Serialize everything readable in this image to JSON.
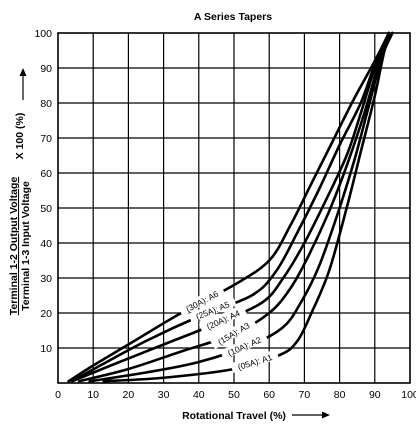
{
  "chart_data": {
    "type": "line",
    "title": "A Series Tapers",
    "xlabel": "Rotational Travel (%)",
    "ylabel_line1": "Terminal 1-2 Output Voltage",
    "ylabel_line2": "Terminal 1-3 Input Voltage",
    "ylabel_suffix": "X 100 (%)",
    "xlim": [
      0,
      100
    ],
    "ylim": [
      0,
      100
    ],
    "x_ticks": [
      "0",
      "10",
      "20",
      "30",
      "40",
      "50",
      "60",
      "70",
      "80",
      "90",
      "100"
    ],
    "y_ticks": [
      "10",
      "20",
      "30",
      "40",
      "50",
      "60",
      "70",
      "80",
      "90",
      "100"
    ],
    "grid": true,
    "series": [
      {
        "name": "(05A): A1",
        "points": [
          [
            13,
            0.5
          ],
          [
            30,
            1.5
          ],
          [
            50,
            4
          ],
          [
            63,
            8
          ],
          [
            68,
            12
          ],
          [
            72,
            20
          ],
          [
            77,
            32
          ],
          [
            82,
            50
          ],
          [
            86,
            66
          ],
          [
            90,
            82
          ],
          [
            93,
            96
          ],
          [
            95,
            100
          ]
        ]
      },
      {
        "name": "(10A): A2",
        "points": [
          [
            9,
            0.5
          ],
          [
            25,
            3
          ],
          [
            40,
            6
          ],
          [
            55,
            11
          ],
          [
            64,
            16
          ],
          [
            69,
            23
          ],
          [
            74,
            33
          ],
          [
            79,
            47
          ],
          [
            84,
            63
          ],
          [
            88,
            78
          ],
          [
            92,
            93
          ],
          [
            95,
            100
          ]
        ]
      },
      {
        "name": "(15A): A3",
        "points": [
          [
            6,
            0.5
          ],
          [
            20,
            4
          ],
          [
            35,
            9
          ],
          [
            50,
            14
          ],
          [
            60,
            20
          ],
          [
            66,
            27
          ],
          [
            71,
            36
          ],
          [
            77,
            49
          ],
          [
            82,
            62
          ],
          [
            87,
            77
          ],
          [
            91,
            91
          ],
          [
            94,
            100
          ]
        ]
      },
      {
        "name": "(20A): A4",
        "points": [
          [
            4,
            0.5
          ],
          [
            15,
            5
          ],
          [
            30,
            11
          ],
          [
            45,
            17
          ],
          [
            58,
            23
          ],
          [
            64,
            30
          ],
          [
            70,
            40
          ],
          [
            76,
            52
          ],
          [
            82,
            65
          ],
          [
            86,
            77
          ],
          [
            90,
            90
          ],
          [
            94,
            100
          ]
        ]
      },
      {
        "name": "(25A): A5",
        "points": [
          [
            4,
            0.5
          ],
          [
            12,
            5
          ],
          [
            25,
            12
          ],
          [
            40,
            19
          ],
          [
            55,
            25
          ],
          [
            62,
            32
          ],
          [
            68,
            43
          ],
          [
            74,
            55
          ],
          [
            80,
            68
          ],
          [
            86,
            80
          ],
          [
            90,
            91
          ],
          [
            94,
            100
          ]
        ]
      },
      {
        "name": "(30A): A6",
        "points": [
          [
            3,
            0.5
          ],
          [
            10,
            5
          ],
          [
            20,
            11
          ],
          [
            35,
            20
          ],
          [
            50,
            28
          ],
          [
            60,
            35
          ],
          [
            66,
            45
          ],
          [
            72,
            57
          ],
          [
            78,
            69
          ],
          [
            84,
            81
          ],
          [
            90,
            92
          ],
          [
            94,
            100
          ]
        ]
      }
    ]
  }
}
